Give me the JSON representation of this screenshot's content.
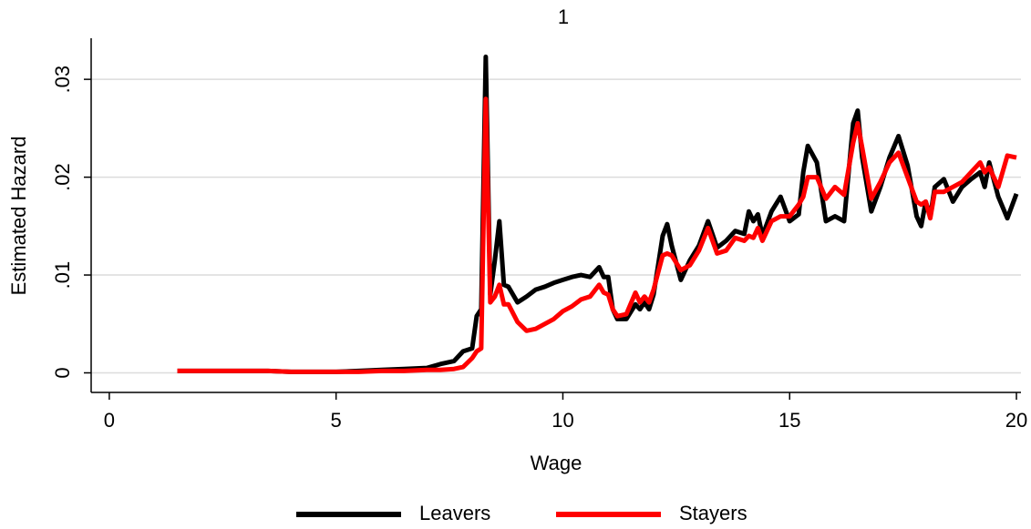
{
  "chart_data": {
    "type": "line",
    "title": "1",
    "xlabel": "Wage",
    "ylabel": "Estimated Hazard",
    "x": [
      1.5,
      2,
      2.5,
      3,
      3.5,
      4,
      4.5,
      5,
      5.5,
      6,
      6.5,
      7,
      7.3,
      7.6,
      7.8,
      8.0,
      8.1,
      8.2,
      8.3,
      8.4,
      8.5,
      8.6,
      8.7,
      8.8,
      9.0,
      9.2,
      9.4,
      9.6,
      9.8,
      10.0,
      10.2,
      10.4,
      10.6,
      10.8,
      10.9,
      11.0,
      11.1,
      11.2,
      11.4,
      11.6,
      11.7,
      11.8,
      11.9,
      12.0,
      12.2,
      12.3,
      12.4,
      12.6,
      12.8,
      13.0,
      13.2,
      13.4,
      13.6,
      13.8,
      14.0,
      14.1,
      14.2,
      14.3,
      14.4,
      14.6,
      14.8,
      15.0,
      15.2,
      15.3,
      15.4,
      15.6,
      15.8,
      16.0,
      16.2,
      16.4,
      16.5,
      16.6,
      16.8,
      17.0,
      17.2,
      17.4,
      17.6,
      17.8,
      17.9,
      18.0,
      18.1,
      18.2,
      18.4,
      18.6,
      18.8,
      19.0,
      19.2,
      19.3,
      19.4,
      19.6,
      19.8,
      20.0
    ],
    "series": [
      {
        "name": "Leavers",
        "color": "#000000",
        "values": [
          0.0002,
          0.0002,
          0.0002,
          0.0002,
          0.0002,
          0.0001,
          0.0001,
          0.0001,
          0.0002,
          0.0003,
          0.0004,
          0.0005,
          0.0009,
          0.0012,
          0.0022,
          0.0025,
          0.0058,
          0.0065,
          0.0323,
          0.008,
          0.0115,
          0.0155,
          0.009,
          0.0088,
          0.0072,
          0.0078,
          0.0085,
          0.0088,
          0.0092,
          0.0095,
          0.0098,
          0.01,
          0.0098,
          0.0108,
          0.0098,
          0.0098,
          0.0065,
          0.0055,
          0.0055,
          0.007,
          0.0065,
          0.0072,
          0.0065,
          0.008,
          0.014,
          0.0152,
          0.013,
          0.0095,
          0.0115,
          0.013,
          0.0155,
          0.0128,
          0.0135,
          0.0145,
          0.0142,
          0.0165,
          0.0155,
          0.0162,
          0.014,
          0.0165,
          0.018,
          0.0155,
          0.0162,
          0.0205,
          0.0232,
          0.0215,
          0.0155,
          0.016,
          0.0155,
          0.0255,
          0.0268,
          0.022,
          0.0165,
          0.019,
          0.022,
          0.0242,
          0.0212,
          0.016,
          0.015,
          0.0175,
          0.016,
          0.019,
          0.0198,
          0.0175,
          0.019,
          0.0198,
          0.0205,
          0.019,
          0.0215,
          0.018,
          0.0158,
          0.0183
        ]
      },
      {
        "name": "Stayers",
        "color": "#ff0000",
        "values": [
          0.0002,
          0.0002,
          0.0002,
          0.0002,
          0.0002,
          0.0001,
          0.0001,
          0.0001,
          0.0001,
          0.0002,
          0.0002,
          0.0003,
          0.0003,
          0.0004,
          0.0006,
          0.0015,
          0.0022,
          0.0025,
          0.028,
          0.0072,
          0.0078,
          0.009,
          0.007,
          0.007,
          0.0052,
          0.0043,
          0.0045,
          0.005,
          0.0055,
          0.0063,
          0.0068,
          0.0075,
          0.0078,
          0.009,
          0.0082,
          0.008,
          0.0065,
          0.0058,
          0.006,
          0.0082,
          0.0072,
          0.0078,
          0.0072,
          0.0085,
          0.012,
          0.0122,
          0.012,
          0.0105,
          0.011,
          0.0125,
          0.0148,
          0.0122,
          0.0125,
          0.0138,
          0.0135,
          0.014,
          0.0138,
          0.0148,
          0.0135,
          0.0155,
          0.016,
          0.016,
          0.0172,
          0.018,
          0.02,
          0.02,
          0.0178,
          0.019,
          0.0182,
          0.0235,
          0.0255,
          0.023,
          0.0178,
          0.0195,
          0.0215,
          0.0225,
          0.02,
          0.0175,
          0.0172,
          0.0175,
          0.0158,
          0.0185,
          0.0185,
          0.019,
          0.0195,
          0.0205,
          0.0215,
          0.0205,
          0.021,
          0.019,
          0.0222,
          0.022
        ]
      }
    ],
    "xlim": [
      -0.4,
      20.1
    ],
    "xticks": [
      0,
      5,
      10,
      15,
      20
    ],
    "ylim": [
      -0.002,
      0.0342
    ],
    "yticks": [
      0,
      {
        "value": 0.01,
        "label": ".01"
      },
      {
        "value": 0.02,
        "label": ".02"
      },
      {
        "value": 0.03,
        "label": ".03"
      }
    ],
    "grid": true,
    "legend": "bottom"
  }
}
